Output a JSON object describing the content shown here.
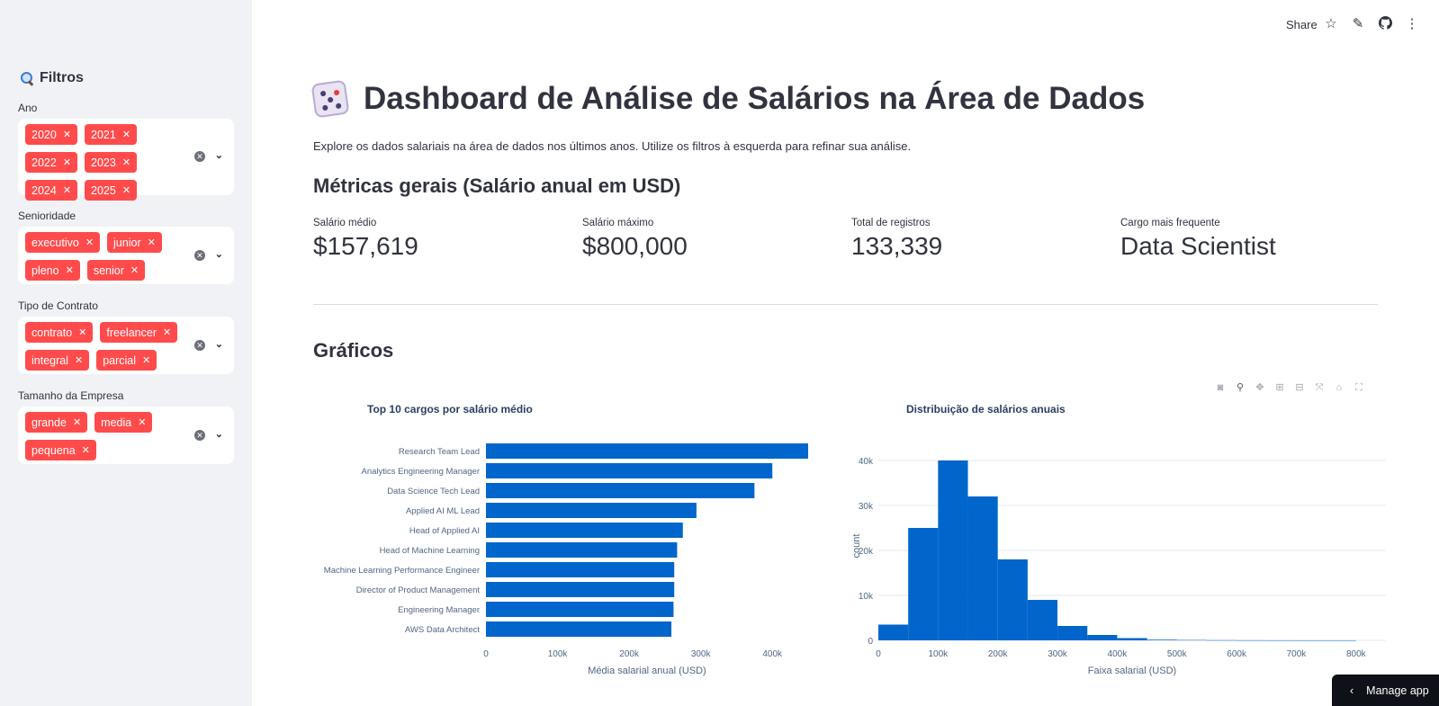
{
  "sidebar": {
    "title": "Filtros",
    "filters": [
      {
        "label": "Ano",
        "chips": [
          "2020",
          "2021",
          "2022",
          "2023",
          "2024",
          "2025"
        ]
      },
      {
        "label": "Senioridade",
        "chips": [
          "executivo",
          "junior",
          "pleno",
          "senior"
        ]
      },
      {
        "label": "Tipo de Contrato",
        "chips": [
          "contrato",
          "freelancer",
          "integral",
          "parcial"
        ]
      },
      {
        "label": "Tamanho da Empresa",
        "chips": [
          "grande",
          "media",
          "pequena"
        ]
      }
    ]
  },
  "topbar": {
    "share_label": "Share"
  },
  "main": {
    "title": "Dashboard de Análise de Salários na Área de Dados",
    "intro": "Explore os dados salariais na área de dados nos últimos anos. Utilize os filtros à esquerda para refinar sua análise.",
    "metrics_heading": "Métricas gerais (Salário anual em USD)",
    "metrics": [
      {
        "label": "Salário médio",
        "value": "$157,619"
      },
      {
        "label": "Salário máximo",
        "value": "$800,000"
      },
      {
        "label": "Total de registros",
        "value": "133,339"
      },
      {
        "label": "Cargo mais frequente",
        "value": "Data Scientist"
      }
    ],
    "charts_heading": "Gráficos"
  },
  "manage_app": "Manage app",
  "colors": {
    "accent": "#ff4b4b",
    "bar": "#0066cc",
    "sidebar_bg": "#f0f2f6"
  },
  "chart_data": [
    {
      "type": "bar",
      "orientation": "horizontal",
      "title": "Top 10 cargos por salário médio",
      "xlabel": "Média salarial anual (USD)",
      "ylabel": "",
      "categories": [
        "Research Team Lead",
        "Analytics Engineering Manager",
        "Data Science Tech Lead",
        "Applied AI ML Lead",
        "Head of Applied AI",
        "Head of Machine Learning",
        "Machine Learning Performance Engineer",
        "Director of Product Management",
        "Engineering Manager",
        "AWS Data Architect"
      ],
      "values": [
        450000,
        400000,
        375000,
        294000,
        275000,
        267000,
        263000,
        263000,
        262000,
        259000
      ],
      "xticks": [
        "0",
        "100k",
        "200k",
        "300k",
        "400k"
      ],
      "xlim": [
        0,
        450000
      ]
    },
    {
      "type": "bar",
      "subtype": "histogram",
      "title": "Distribuição de salários anuais",
      "xlabel": "Faixa salarial (USD)",
      "ylabel": "count",
      "bin_edges": [
        0,
        50000,
        100000,
        150000,
        200000,
        250000,
        300000,
        350000,
        400000,
        450000,
        500000,
        550000,
        600000,
        650000,
        700000,
        750000,
        800000
      ],
      "values": [
        3500,
        25000,
        40000,
        32000,
        18000,
        9000,
        3200,
        1200,
        500,
        150,
        80,
        40,
        20,
        10,
        5,
        5
      ],
      "xticks": [
        "0",
        "100k",
        "200k",
        "300k",
        "400k",
        "500k",
        "600k",
        "700k",
        "800k"
      ],
      "yticks": [
        "0",
        "10k",
        "20k",
        "30k",
        "40k"
      ],
      "xlim": [
        0,
        850000
      ],
      "ylim": [
        0,
        42000
      ],
      "grid": true
    }
  ]
}
